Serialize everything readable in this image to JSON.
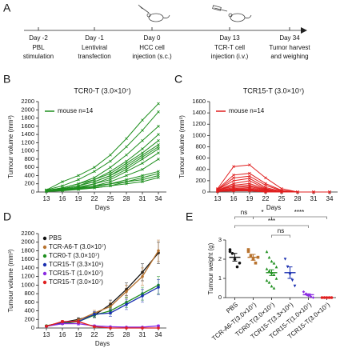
{
  "timeline": {
    "panel": "A",
    "events": [
      {
        "day": "Day -2",
        "lines": [
          "PBL",
          "stimulation"
        ]
      },
      {
        "day": "Day -1",
        "lines": [
          "Lentiviral",
          "transfection"
        ]
      },
      {
        "day": "Day 0",
        "lines": [
          "HCC cell",
          "injection (s.c.)"
        ]
      },
      {
        "day": "Day 13",
        "lines": [
          "TCR-T cell",
          "injection (i.v.)"
        ]
      },
      {
        "day": "Day 34",
        "lines": [
          "Tumor harvest",
          "and weighing"
        ]
      }
    ]
  },
  "chart_data": [
    {
      "type": "line",
      "panel": "B",
      "title": "TCR0-T (3.0×10⁷)",
      "xlabel": "Days",
      "ylabel": "Tumour volume (mm³)",
      "legend": "mouse n=14",
      "color": "#1f8f1f",
      "x": [
        13,
        16,
        19,
        22,
        25,
        28,
        31,
        34
      ],
      "xlim": [
        11.5,
        35.5
      ],
      "xticks": [
        13,
        16,
        19,
        22,
        25,
        28,
        31,
        34
      ],
      "ylim": [
        0,
        2200
      ],
      "yticks": [
        0,
        200,
        400,
        600,
        800,
        1000,
        1200,
        1400,
        1600,
        1800,
        2000,
        2200
      ],
      "series": [
        {
          "values": [
            50,
            250,
            400,
            600,
            900,
            1300,
            1750,
            2150
          ]
        },
        {
          "values": [
            50,
            150,
            300,
            500,
            750,
            1100,
            1500,
            1950
          ]
        },
        {
          "values": [
            40,
            100,
            200,
            350,
            600,
            900,
            1250,
            1600
          ]
        },
        {
          "values": [
            40,
            100,
            200,
            300,
            500,
            750,
            1050,
            1400
          ]
        },
        {
          "values": [
            30,
            80,
            150,
            300,
            450,
            700,
            950,
            1250
          ]
        },
        {
          "values": [
            30,
            80,
            150,
            250,
            400,
            650,
            900,
            1150
          ]
        },
        {
          "values": [
            30,
            70,
            150,
            250,
            400,
            600,
            850,
            1100
          ]
        },
        {
          "values": [
            30,
            60,
            120,
            200,
            350,
            550,
            800,
            1050
          ]
        },
        {
          "values": [
            30,
            60,
            100,
            200,
            300,
            500,
            700,
            950
          ]
        },
        {
          "values": [
            20,
            50,
            100,
            150,
            250,
            400,
            550,
            800
          ]
        },
        {
          "values": [
            20,
            50,
            80,
            150,
            200,
            300,
            400,
            500
          ]
        },
        {
          "values": [
            20,
            40,
            80,
            120,
            200,
            250,
            350,
            450
          ]
        },
        {
          "values": [
            20,
            40,
            70,
            100,
            150,
            250,
            300,
            400
          ]
        },
        {
          "values": [
            10,
            30,
            60,
            100,
            150,
            200,
            250,
            350
          ]
        }
      ]
    },
    {
      "type": "line",
      "panel": "C",
      "title": "TCR15-T (3.0×10⁷)",
      "xlabel": "Days",
      "ylabel": "Tumour volume (mm³)",
      "legend": "mouse n=14",
      "color": "#e02020",
      "x": [
        13,
        16,
        19,
        22,
        25,
        28,
        31,
        34
      ],
      "xlim": [
        11.5,
        35.5
      ],
      "xticks": [
        13,
        16,
        19,
        22,
        25,
        28,
        31,
        34
      ],
      "ylim": [
        0,
        1600
      ],
      "yticks": [
        0,
        200,
        400,
        600,
        800,
        1000,
        1200,
        1400,
        1600
      ],
      "series": [
        {
          "values": [
            60,
            450,
            480,
            250,
            60,
            0,
            0,
            0
          ]
        },
        {
          "values": [
            50,
            300,
            330,
            150,
            30,
            0,
            0,
            0
          ]
        },
        {
          "values": [
            40,
            250,
            280,
            120,
            20,
            0,
            0,
            0
          ]
        },
        {
          "values": [
            40,
            200,
            240,
            80,
            10,
            0,
            0,
            0
          ]
        },
        {
          "values": [
            30,
            150,
            200,
            60,
            0,
            0,
            0,
            0
          ]
        },
        {
          "values": [
            30,
            120,
            150,
            50,
            0,
            0,
            0,
            0
          ]
        },
        {
          "values": [
            30,
            100,
            120,
            40,
            0,
            0,
            0,
            0
          ]
        },
        {
          "values": [
            20,
            80,
            100,
            30,
            0,
            0,
            0,
            0
          ]
        },
        {
          "values": [
            20,
            60,
            80,
            20,
            0,
            0,
            0,
            0
          ]
        },
        {
          "values": [
            20,
            50,
            60,
            10,
            0,
            0,
            0,
            0
          ]
        },
        {
          "values": [
            10,
            40,
            50,
            10,
            0,
            0,
            0,
            0
          ]
        },
        {
          "values": [
            10,
            30,
            40,
            0,
            0,
            0,
            0,
            0
          ]
        },
        {
          "values": [
            10,
            20,
            30,
            0,
            0,
            0,
            0,
            0
          ]
        },
        {
          "values": [
            10,
            20,
            20,
            0,
            0,
            0,
            0,
            0
          ]
        }
      ]
    },
    {
      "type": "line",
      "panel": "D",
      "xlabel": "Days",
      "ylabel": "Tumour  volume (mm³)",
      "x": [
        13,
        16,
        19,
        22,
        25,
        28,
        31,
        34
      ],
      "xlim": [
        11.5,
        35.5
      ],
      "xticks": [
        13,
        16,
        19,
        22,
        25,
        28,
        31,
        34
      ],
      "ylim": [
        0,
        2200
      ],
      "yticks": [
        0,
        200,
        400,
        600,
        800,
        1000,
        1200,
        1400,
        1600,
        1800,
        2000,
        2200
      ],
      "series": [
        {
          "name": "PBS",
          "color": "#111111",
          "values": [
            50,
            130,
            200,
            300,
            550,
            900,
            1300,
            1750
          ],
          "err": [
            10,
            30,
            40,
            60,
            100,
            150,
            200,
            250
          ]
        },
        {
          "name": "TCR-A6-T (3.0×10⁷)",
          "color": "#b8732f",
          "values": [
            50,
            120,
            180,
            350,
            500,
            850,
            1200,
            1800
          ],
          "err": [
            10,
            30,
            40,
            60,
            90,
            150,
            200,
            250
          ]
        },
        {
          "name": "TCR0-T (3.0×10⁷)",
          "color": "#1f8f1f",
          "values": [
            50,
            100,
            150,
            300,
            400,
            600,
            800,
            1000
          ],
          "err": [
            10,
            20,
            30,
            50,
            80,
            120,
            150,
            200
          ]
        },
        {
          "name": "TCR15-T (3.3×10⁶)",
          "color": "#1a2fb0",
          "values": [
            40,
            130,
            150,
            320,
            350,
            550,
            750,
            950
          ],
          "err": [
            10,
            30,
            30,
            60,
            80,
            120,
            150,
            180
          ]
        },
        {
          "name": "TCR15-T (1.0×10⁷)",
          "color": "#8a2be2",
          "values": [
            40,
            100,
            100,
            50,
            30,
            20,
            20,
            50
          ],
          "err": [
            10,
            20,
            30,
            20,
            10,
            10,
            10,
            20
          ]
        },
        {
          "name": "TCR15-T (3.0×10⁷)",
          "color": "#e02020",
          "values": [
            40,
            150,
            150,
            30,
            0,
            0,
            0,
            0
          ],
          "err": [
            10,
            30,
            40,
            10,
            0,
            0,
            0,
            0
          ]
        }
      ]
    },
    {
      "type": "dot",
      "panel": "E",
      "ylabel": "Tumour weight (g)",
      "categories": [
        "PBS",
        "TCR-A6-T(3.0×10⁷)",
        "TCR0-T(3.0×10⁷)",
        "TCR15-T(3.3×10⁶)",
        "TCR15-T(1.0×10⁷)",
        "TCR15-T(3.0×10⁷)"
      ],
      "ylim": [
        0,
        3
      ],
      "yticks": [
        0,
        1,
        2,
        3
      ],
      "groups": [
        {
          "color": "#111111",
          "values": [
            2.5,
            2.3,
            2.0,
            1.6,
            1.8,
            2.4
          ],
          "mean": 2.1,
          "sem": 0.2
        },
        {
          "color": "#b8732f",
          "values": [
            2.4,
            2.2,
            2.0,
            1.8,
            2.1,
            2.5
          ],
          "mean": 2.1,
          "sem": 0.15
        },
        {
          "color": "#1f8f1f",
          "values": [
            2.4,
            2.1,
            1.9,
            1.8,
            1.6,
            1.5,
            1.4,
            1.3,
            1.2,
            1.0,
            0.9,
            0.8,
            0.6,
            0.5
          ],
          "mean": 1.3,
          "sem": 0.15
        },
        {
          "color": "#1a2fb0",
          "values": [
            2.0,
            1.6,
            1.2,
            0.9,
            0.6
          ],
          "mean": 1.3,
          "sem": 0.3
        },
        {
          "color": "#8a2be2",
          "values": [
            0.3,
            0.2,
            0.1,
            0.05,
            0
          ],
          "mean": 0.15,
          "sem": 0.05
        },
        {
          "color": "#e02020",
          "values": [
            0,
            0,
            0,
            0,
            0
          ],
          "mean": 0,
          "sem": 0
        }
      ],
      "comparisons": [
        {
          "groups": [
            0,
            1
          ],
          "label": "ns"
        },
        {
          "groups": [
            1,
            2
          ],
          "label": "*"
        },
        {
          "groups": [
            2,
            5
          ],
          "label": "****"
        },
        {
          "groups": [
            0,
            4
          ],
          "label": "***"
        },
        {
          "groups": [
            2,
            3
          ],
          "label": "ns"
        }
      ]
    }
  ]
}
